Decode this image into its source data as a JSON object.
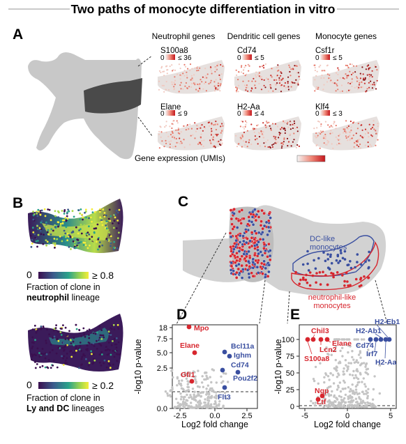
{
  "title": "Two paths of monocyte differentiation in vitro",
  "panels": {
    "a": "A",
    "b": "B",
    "c": "C",
    "d": "D",
    "e": "E"
  },
  "panel_a": {
    "groups": [
      "Neutrophil genes",
      "Dendritic cell genes",
      "Monocyte genes"
    ],
    "genes": [
      {
        "name": "S100a8",
        "min": "0",
        "max": "≤ 36"
      },
      {
        "name": "Cd74",
        "min": "0",
        "max": "≤ 5"
      },
      {
        "name": "Csf1r",
        "min": "0",
        "max": "≤ 5"
      },
      {
        "name": "Elane",
        "min": "0",
        "max": "≤ 9"
      },
      {
        "name": "H2-Aa",
        "min": "0",
        "max": "≤ 4"
      },
      {
        "name": "Klf4",
        "min": "0",
        "max": "≤ 3"
      }
    ],
    "colorbar_label": "Gene expression (UMIs)"
  },
  "panel_b": {
    "top": {
      "min": "0",
      "max": "≥ 0.8",
      "line1": "Fraction of clone in",
      "line2": "neutrophil",
      "line2b": " lineage"
    },
    "bottom": {
      "min": "0",
      "max": "≥ 0.2",
      "line1": "Fraction of clone in",
      "line2": "Ly and DC",
      "line2b": " lineages"
    }
  },
  "panel_c": {
    "dc_label": [
      "DC-like",
      "monocytes"
    ],
    "neu_label": [
      "neutrophil-like",
      "monocytes"
    ]
  },
  "panel_d": {
    "ylabel": "-log10 p-value",
    "xlabel": "Log2 fold change",
    "yticks": [
      "18",
      "7.5",
      "5.0",
      "2.5",
      "0.0"
    ],
    "xticks": [
      "-2.5",
      "0.0",
      "2.5"
    ],
    "red_genes": [
      "Mpo",
      "Elane",
      "Gfi1"
    ],
    "blue_genes": [
      "Bcl11a",
      "Ighm",
      "Cd74",
      "Pou2f2",
      "Flt3"
    ]
  },
  "panel_e": {
    "ylabel": "-log10 p-value",
    "xlabel": "Log2 fold change",
    "yticks": [
      "100",
      "75",
      "50",
      "25",
      "0"
    ],
    "xticks": [
      "-5",
      "0",
      "5"
    ],
    "red_genes": [
      "Chil3",
      "Lcn2",
      "Elane",
      "S100a8",
      "Ngp",
      "Ltf"
    ],
    "blue_genes": [
      "H2-Eb1",
      "H2-Ab1",
      "Cd74",
      "Irf7",
      "H2-Aa"
    ]
  },
  "colors": {
    "red": "#d7262e",
    "blue": "#3a4fa0",
    "gray": "#c4c4c4",
    "dark": "#444444"
  }
}
